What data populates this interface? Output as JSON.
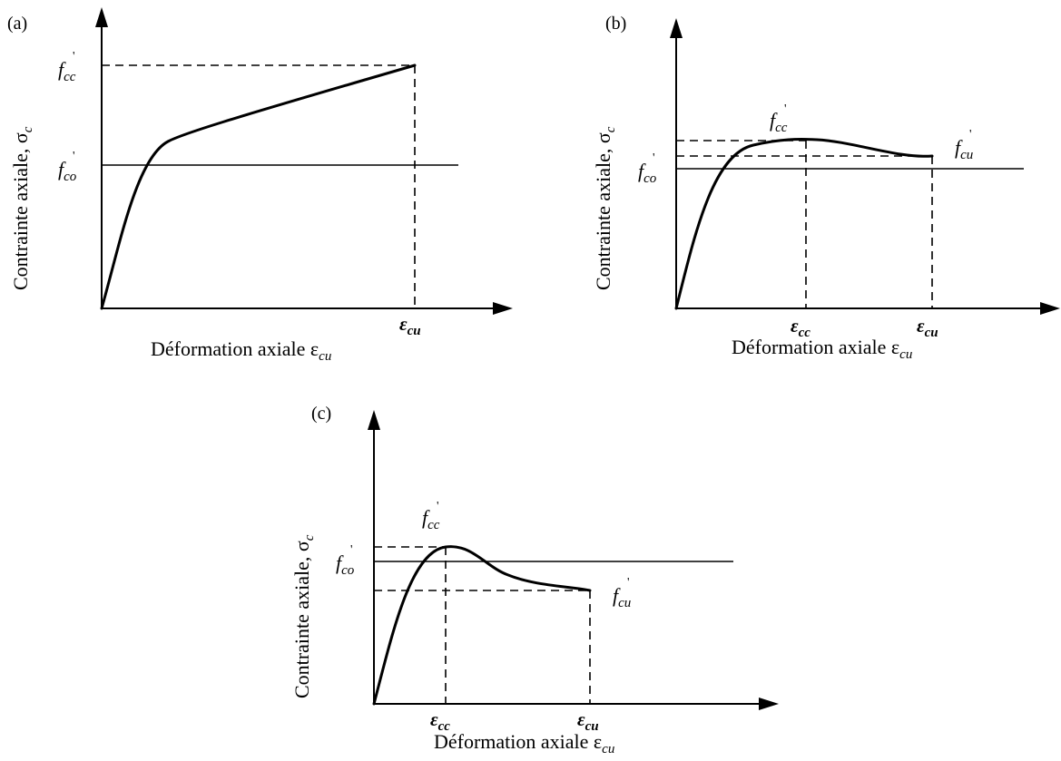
{
  "panels": {
    "a": {
      "label": "(a)",
      "ylabel": "Contrainte axiale, σ",
      "ylabel_sub": "c",
      "xlabel": "Déformation axiale ε",
      "xlabel_sub": "cu",
      "fcc_main": "f",
      "fcc_sub": "cc",
      "fcc_prime": "'",
      "fco_main": "f",
      "fco_sub": "co",
      "fco_prime": "'",
      "ecu_main": "ε",
      "ecu_sub": "cu"
    },
    "b": {
      "label": "(b)",
      "ylabel": "Contrainte axiale, σ",
      "ylabel_sub": "c",
      "xlabel": "Déformation axiale ε",
      "xlabel_sub": "cu",
      "fcc_main": "f",
      "fcc_sub": "cc",
      "fcc_prime": "'",
      "fco_main": "f",
      "fco_sub": "co",
      "fco_prime": "'",
      "fcu_main": "f",
      "fcu_sub": "cu",
      "fcu_prime": "'",
      "ecc_main": "ε",
      "ecc_sub": "cc",
      "ecu_main": "ε",
      "ecu_sub": "cu"
    },
    "c": {
      "label": "(c)",
      "ylabel": "Contrainte axiale, σ",
      "ylabel_sub": "c",
      "xlabel": "Déformation axiale ε",
      "xlabel_sub": "cu",
      "fcc_main": "f",
      "fcc_sub": "cc",
      "fcc_prime": "'",
      "fco_main": "f",
      "fco_sub": "co",
      "fco_prime": "'",
      "fcu_main": "f",
      "fcu_sub": "cu",
      "fcu_prime": "'",
      "ecc_main": "ε",
      "ecc_sub": "cc",
      "ecu_main": "ε",
      "ecu_sub": "cu"
    }
  }
}
